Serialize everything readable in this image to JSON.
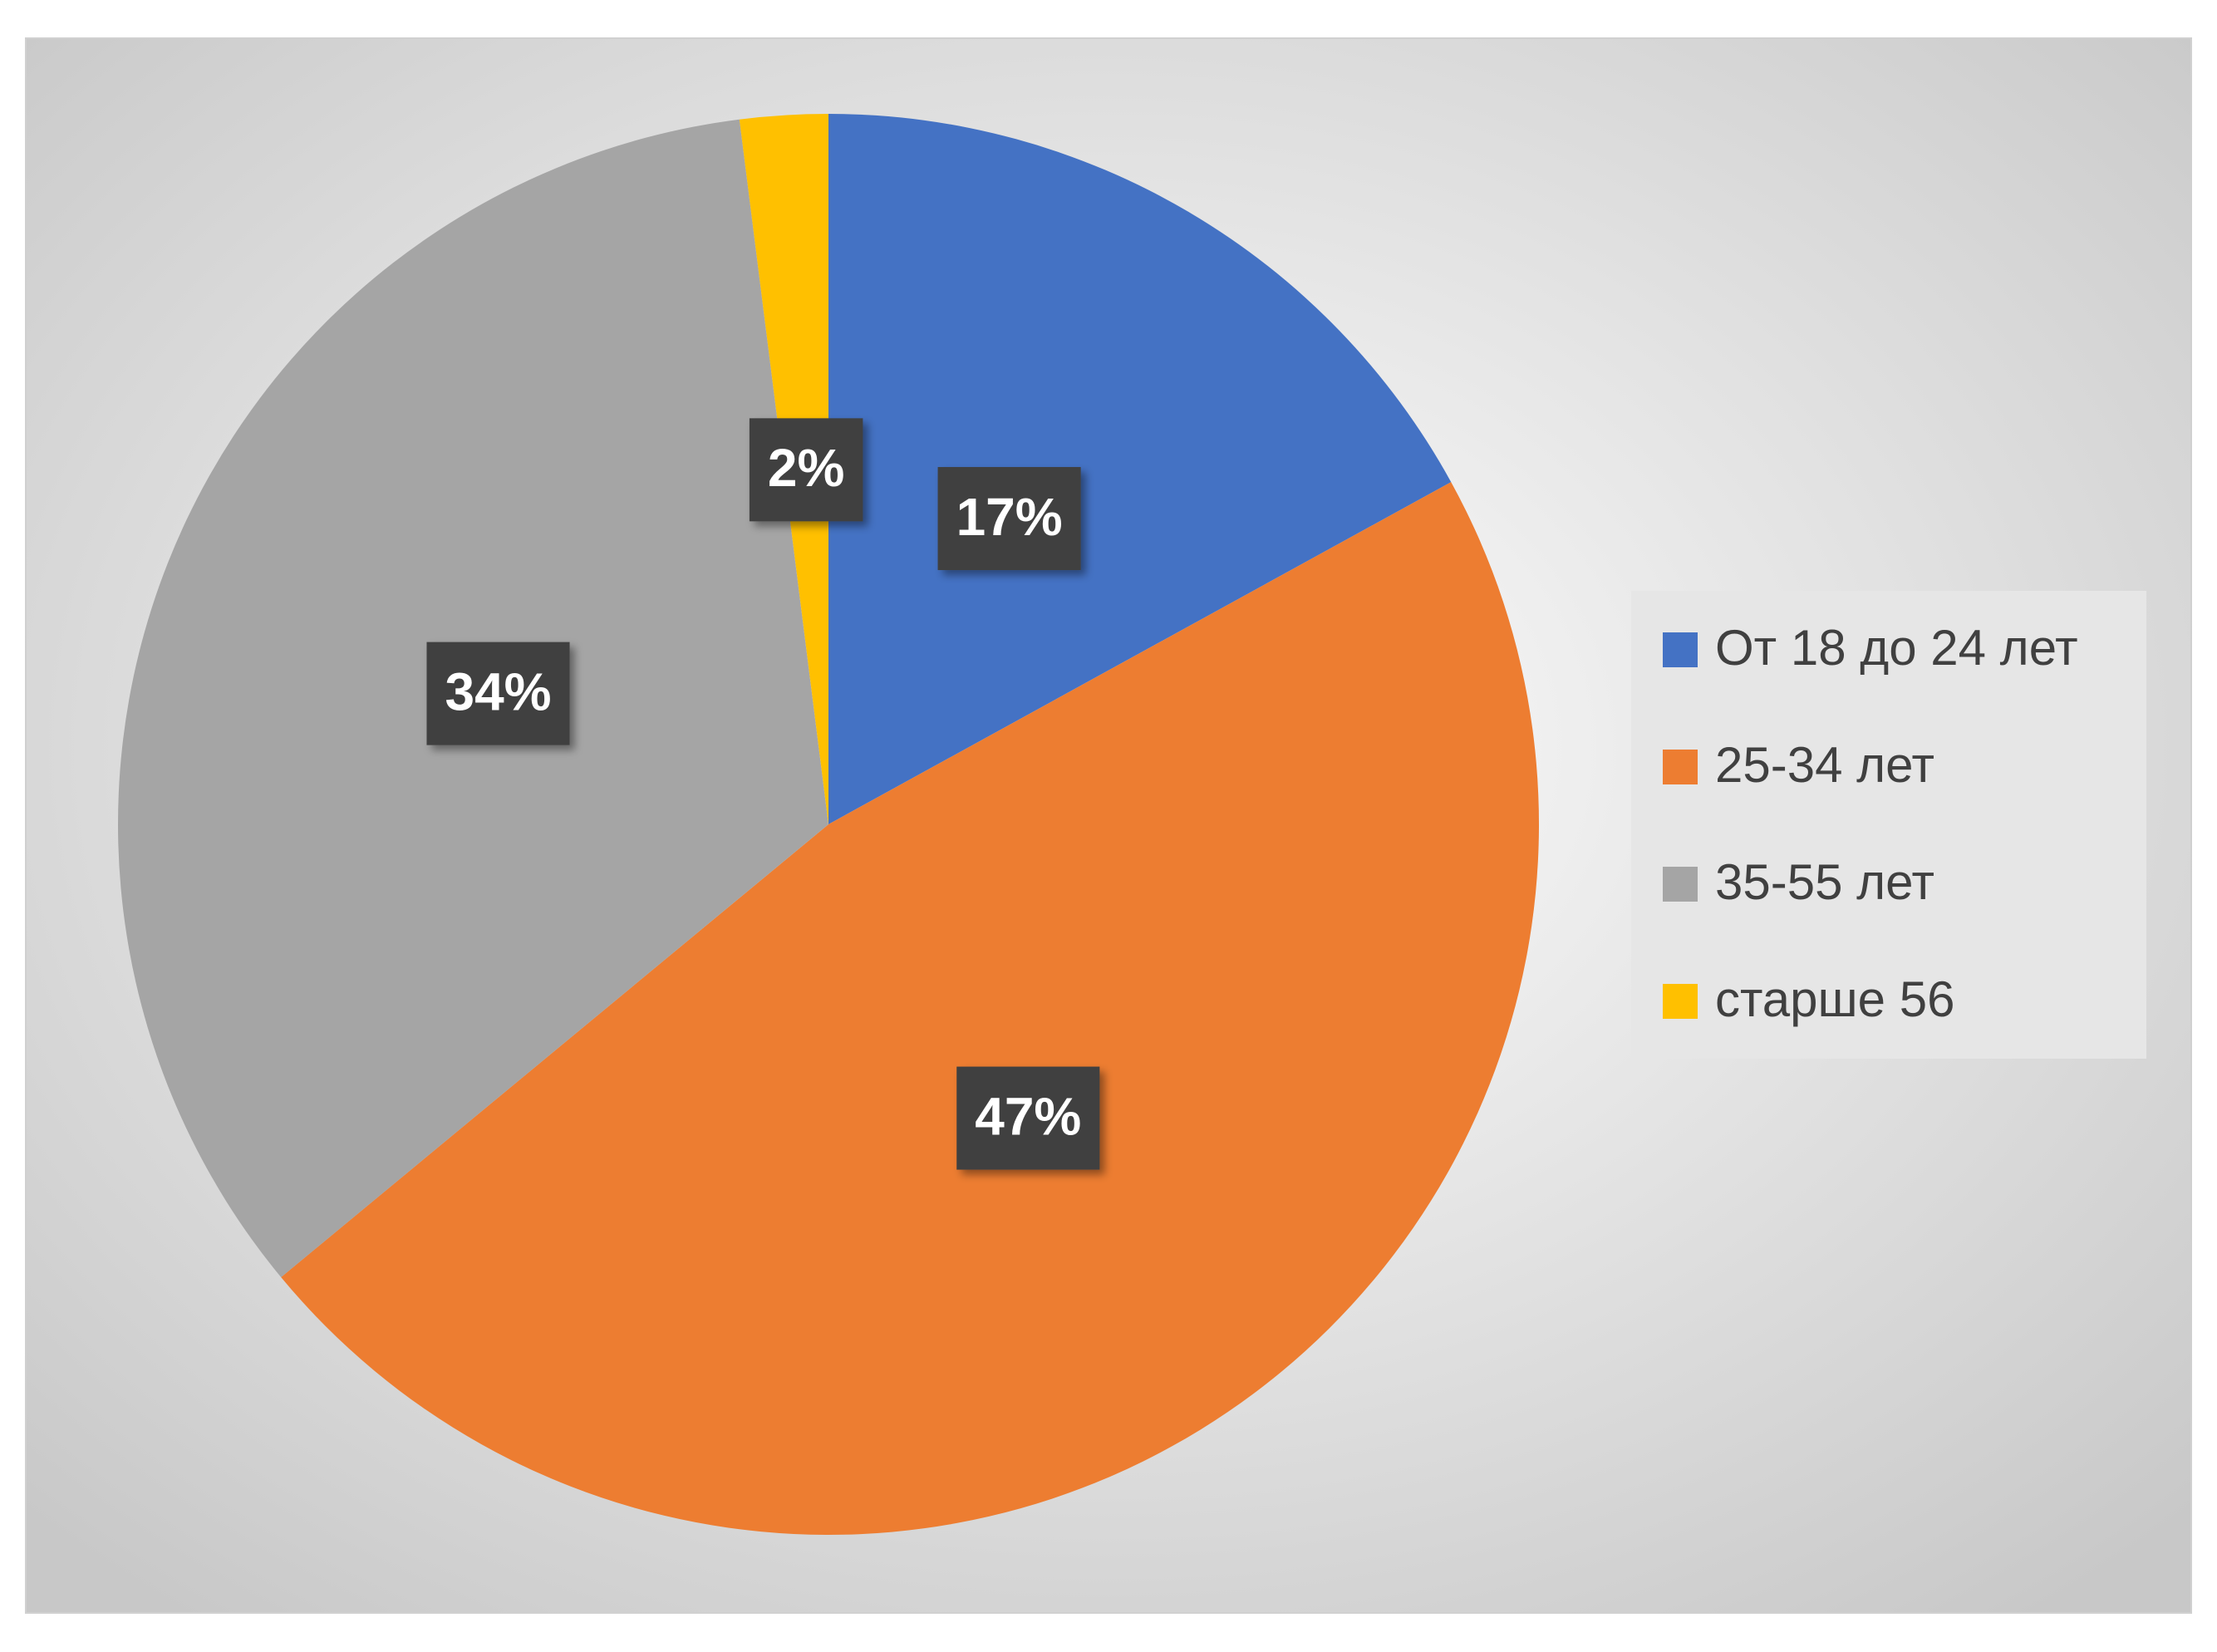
{
  "chart_data": {
    "type": "pie",
    "categories": [
      "От 18 до 24 лет",
      "25-34 лет",
      "35-55 лет",
      "старше 56"
    ],
    "values": [
      17,
      47,
      34,
      2
    ],
    "value_labels": [
      "17%",
      "47%",
      "34%",
      "2%"
    ],
    "colors": [
      "#4472c4",
      "#ed7d31",
      "#a5a5a5",
      "#ffc000"
    ],
    "legend": "right"
  }
}
